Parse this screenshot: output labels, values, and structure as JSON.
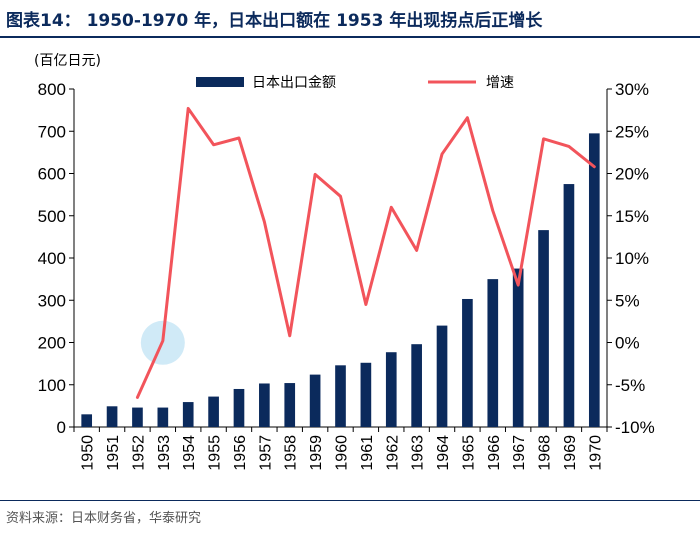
{
  "header": {
    "title": "图表14： 1950-1970 年，日本出口额在 1953 年出现拐点后正增长",
    "unit_label": "(百亿日元)"
  },
  "footer": {
    "source": "资料来源：日本财务省，华泰研究"
  },
  "colors": {
    "bar": "#0b2a5c",
    "line": "#f2545b",
    "highlight": "#a9d8f0"
  },
  "chart_data": {
    "type": "bar",
    "title": "1950-1970 年，日本出口额在 1953 年出现拐点后正增长",
    "categories": [
      "1950",
      "1951",
      "1952",
      "1953",
      "1954",
      "1955",
      "1956",
      "1957",
      "1958",
      "1959",
      "1960",
      "1961",
      "1962",
      "1963",
      "1964",
      "1965",
      "1966",
      "1967",
      "1968",
      "1969",
      "1970"
    ],
    "series": [
      {
        "name": "日本出口金额",
        "type": "bar",
        "axis": "left",
        "values": [
          30,
          49,
          46,
          46,
          59,
          72,
          90,
          103,
          104,
          124,
          146,
          152,
          177,
          196,
          240,
          303,
          350,
          375,
          466,
          575,
          695
        ]
      },
      {
        "name": "增速",
        "type": "line",
        "axis": "right",
        "values": [
          null,
          null,
          -6.5,
          0.2,
          27.7,
          23.4,
          24.2,
          14.3,
          0.8,
          19.9,
          17.3,
          4.5,
          16.0,
          10.9,
          22.3,
          26.6,
          15.6,
          6.8,
          24.1,
          23.2,
          20.8
        ]
      }
    ],
    "y_left": {
      "min": 0,
      "max": 800,
      "step": 100,
      "ticks": [
        "0",
        "100",
        "200",
        "300",
        "400",
        "500",
        "600",
        "700",
        "800"
      ]
    },
    "y_right": {
      "min": -10,
      "max": 30,
      "step": 5,
      "ticks": [
        "-10%",
        "-5%",
        "0%",
        "5%",
        "10%",
        "15%",
        "20%",
        "25%",
        "30%"
      ]
    },
    "highlight_year": "1953",
    "legend": {
      "position": "top"
    }
  }
}
